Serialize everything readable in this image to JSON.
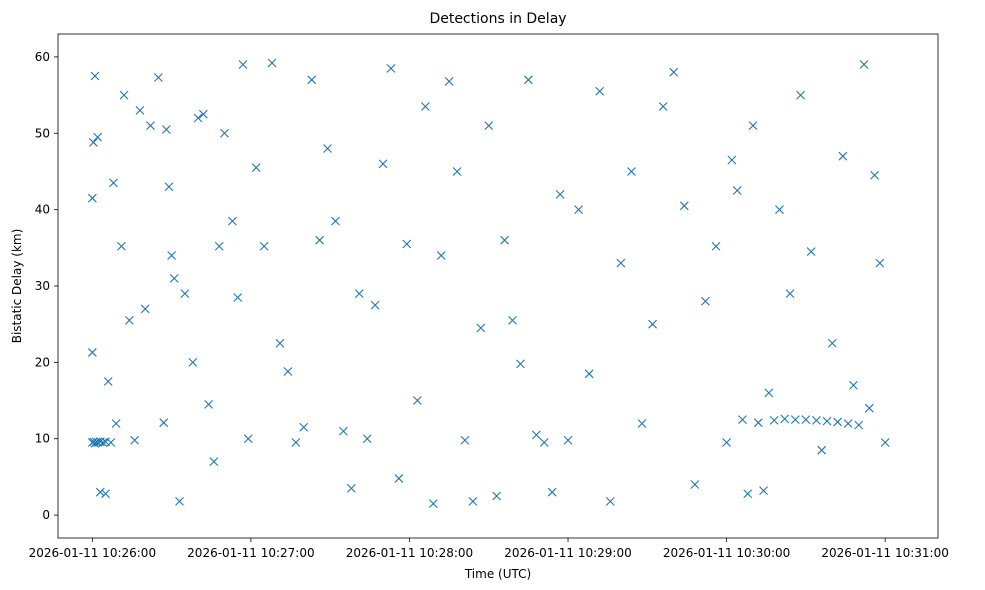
{
  "chart_data": {
    "type": "scatter",
    "title": "Detections in Delay",
    "xlabel": "Time (UTC)",
    "ylabel": "Bistatic Delay (km)",
    "marker": "x",
    "color": "#1f77b4",
    "grid": false,
    "legend": "none",
    "x_unit": "UTC time",
    "xlim": [
      "2026-01-11 10:25:47",
      "2026-01-11 10:31:20"
    ],
    "ylim": [
      -3.0,
      63.0
    ],
    "x_ticks": [
      "2026-01-11 10:26:00",
      "2026-01-11 10:27:00",
      "2026-01-11 10:28:00",
      "2026-01-11 10:29:00",
      "2026-01-11 10:30:00",
      "2026-01-11 10:31:00"
    ],
    "y_ticks": [
      0,
      10,
      20,
      30,
      40,
      50,
      60
    ],
    "series": [
      {
        "x": [
          "2026-01-11 10:26:00.0",
          "2026-01-11 10:26:00.5",
          "2026-01-11 10:26:01.0",
          "2026-01-11 10:26:01.5",
          "2026-01-11 10:26:02.0",
          "2026-01-11 10:26:03.0",
          "2026-01-11 10:26:04.0",
          "2026-01-11 10:26:05.0",
          "2026-01-11 10:26:07.0",
          "2026-01-11 10:26:00.0",
          "2026-01-11 10:26:00.0",
          "2026-01-11 10:26:00.4",
          "2026-01-11 10:26:01.0",
          "2026-01-11 10:26:02.0",
          "2026-01-11 10:26:03.0",
          "2026-01-11 10:26:05.0",
          "2026-01-11 10:26:06.0",
          "2026-01-11 10:26:08.0",
          "2026-01-11 10:26:09.0",
          "2026-01-11 10:26:11.0",
          "2026-01-11 10:26:12.0",
          "2026-01-11 10:26:14.0",
          "2026-01-11 10:26:16.0",
          "2026-01-11 10:26:18.0",
          "2026-01-11 10:26:20.0",
          "2026-01-11 10:26:22.0",
          "2026-01-11 10:26:25.0",
          "2026-01-11 10:26:27.0",
          "2026-01-11 10:26:28.0",
          "2026-01-11 10:26:30.0",
          "2026-01-11 10:26:29.0",
          "2026-01-11 10:26:31.0",
          "2026-01-11 10:26:33.0",
          "2026-01-11 10:26:35.0",
          "2026-01-11 10:26:38.0",
          "2026-01-11 10:26:40.0",
          "2026-01-11 10:26:42.0",
          "2026-01-11 10:26:44.0",
          "2026-01-11 10:26:46.0",
          "2026-01-11 10:26:48.0",
          "2026-01-11 10:26:50.0",
          "2026-01-11 10:26:53.0",
          "2026-01-11 10:26:55.0",
          "2026-01-11 10:26:57.0",
          "2026-01-11 10:26:59.0",
          "2026-01-11 10:27:02.0",
          "2026-01-11 10:27:05.0",
          "2026-01-11 10:27:08.0",
          "2026-01-11 10:27:11.0",
          "2026-01-11 10:27:14.0",
          "2026-01-11 10:27:17.0",
          "2026-01-11 10:27:20.0",
          "2026-01-11 10:27:23.0",
          "2026-01-11 10:27:26.0",
          "2026-01-11 10:27:29.0",
          "2026-01-11 10:27:32.0",
          "2026-01-11 10:27:35.0",
          "2026-01-11 10:27:38.0",
          "2026-01-11 10:27:41.0",
          "2026-01-11 10:27:44.0",
          "2026-01-11 10:27:47.0",
          "2026-01-11 10:27:50.0",
          "2026-01-11 10:27:53.0",
          "2026-01-11 10:27:56.0",
          "2026-01-11 10:27:59.0",
          "2026-01-11 10:28:03.0",
          "2026-01-11 10:28:06.0",
          "2026-01-11 10:28:09.0",
          "2026-01-11 10:28:12.0",
          "2026-01-11 10:28:15.0",
          "2026-01-11 10:28:18.0",
          "2026-01-11 10:28:21.0",
          "2026-01-11 10:28:24.0",
          "2026-01-11 10:28:27.0",
          "2026-01-11 10:28:30.0",
          "2026-01-11 10:28:33.0",
          "2026-01-11 10:28:36.0",
          "2026-01-11 10:28:39.0",
          "2026-01-11 10:28:42.0",
          "2026-01-11 10:28:45.0",
          "2026-01-11 10:28:48.0",
          "2026-01-11 10:28:51.0",
          "2026-01-11 10:28:54.0",
          "2026-01-11 10:28:57.0",
          "2026-01-11 10:29:00.0",
          "2026-01-11 10:29:04.0",
          "2026-01-11 10:29:08.0",
          "2026-01-11 10:29:12.0",
          "2026-01-11 10:29:16.0",
          "2026-01-11 10:29:20.0",
          "2026-01-11 10:29:24.0",
          "2026-01-11 10:29:28.0",
          "2026-01-11 10:29:32.0",
          "2026-01-11 10:29:36.0",
          "2026-01-11 10:29:40.0",
          "2026-01-11 10:29:44.0",
          "2026-01-11 10:29:48.0",
          "2026-01-11 10:29:52.0",
          "2026-01-11 10:29:56.0",
          "2026-01-11 10:30:00.0",
          "2026-01-11 10:30:02.0",
          "2026-01-11 10:30:04.0",
          "2026-01-11 10:30:06.0",
          "2026-01-11 10:30:08.0",
          "2026-01-11 10:30:10.0",
          "2026-01-11 10:30:12.0",
          "2026-01-11 10:30:14.0",
          "2026-01-11 10:30:16.0",
          "2026-01-11 10:30:18.0",
          "2026-01-11 10:30:20.0",
          "2026-01-11 10:30:22.0",
          "2026-01-11 10:30:24.0",
          "2026-01-11 10:30:26.0",
          "2026-01-11 10:30:28.0",
          "2026-01-11 10:30:30.0",
          "2026-01-11 10:30:32.0",
          "2026-01-11 10:30:34.0",
          "2026-01-11 10:30:36.0",
          "2026-01-11 10:30:38.0",
          "2026-01-11 10:30:40.0",
          "2026-01-11 10:30:42.0",
          "2026-01-11 10:30:44.0",
          "2026-01-11 10:30:46.0",
          "2026-01-11 10:30:48.0",
          "2026-01-11 10:30:50.0",
          "2026-01-11 10:30:52.0",
          "2026-01-11 10:30:54.0",
          "2026-01-11 10:30:56.0",
          "2026-01-11 10:30:58.0",
          "2026-01-11 10:31:00.0"
        ],
        "y": [
          9.5,
          9.6,
          9.4,
          9.6,
          9.5,
          9.6,
          9.5,
          9.6,
          9.5,
          21.3,
          41.5,
          48.8,
          57.5,
          49.5,
          3.0,
          2.8,
          17.5,
          43.5,
          12.0,
          35.2,
          55.0,
          25.5,
          9.8,
          53.0,
          27.0,
          51.0,
          57.3,
          12.1,
          50.5,
          34.0,
          43.0,
          31.0,
          1.8,
          29.0,
          20.0,
          52.0,
          52.5,
          14.5,
          7.0,
          35.2,
          50.0,
          38.5,
          28.5,
          59.0,
          10.0,
          45.5,
          35.2,
          59.2,
          22.5,
          18.8,
          9.5,
          11.5,
          57.0,
          36.0,
          48.0,
          38.5,
          11.0,
          3.5,
          29.0,
          10.0,
          27.5,
          46.0,
          58.5,
          4.8,
          35.5,
          15.0,
          53.5,
          1.5,
          34.0,
          56.8,
          45.0,
          9.8,
          1.8,
          24.5,
          51.0,
          2.5,
          36.0,
          25.5,
          19.8,
          57.0,
          10.5,
          9.5,
          3.0,
          42.0,
          9.8,
          40.0,
          18.5,
          55.5,
          1.8,
          33.0,
          45.0,
          12.0,
          25.0,
          53.5,
          58.0,
          40.5,
          4.0,
          28.0,
          35.2,
          9.5,
          46.5,
          42.5,
          12.5,
          2.8,
          51.0,
          12.1,
          3.2,
          16.0,
          12.4,
          40.0,
          12.6,
          29.0,
          12.5,
          55.0,
          12.5,
          34.5,
          12.4,
          8.5,
          12.3,
          22.5,
          12.2,
          47.0,
          12.0,
          17.0,
          11.8,
          59.0,
          14.0,
          44.5,
          33.0,
          9.5
        ],
        "note": "values are approximate readings of a dense sample of the detections"
      }
    ]
  }
}
